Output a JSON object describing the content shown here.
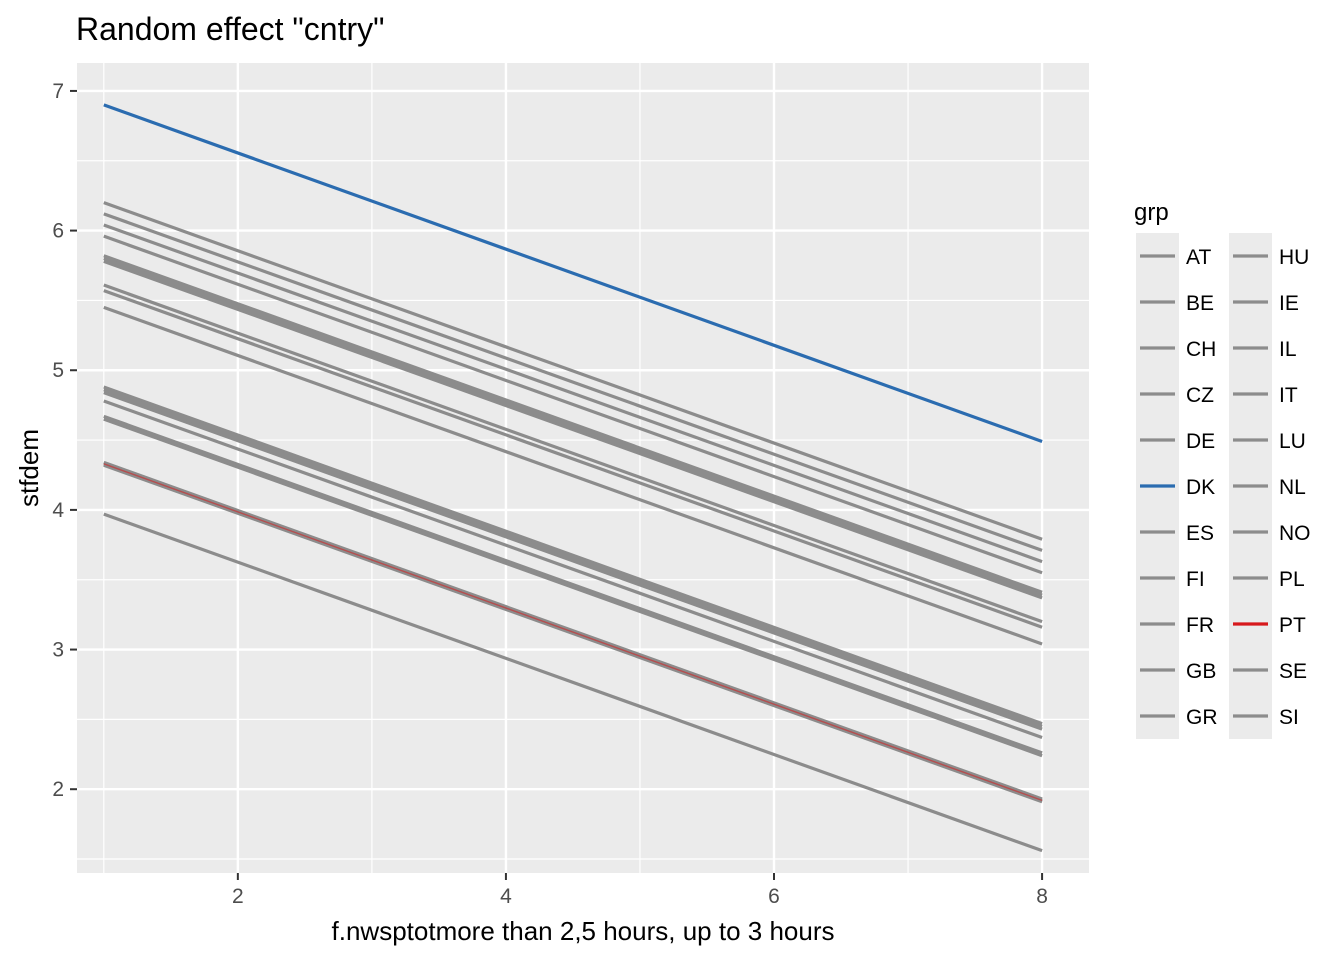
{
  "chart_data": {
    "type": "line",
    "title": "Random effect \"cntry\"",
    "xlabel": "f.nwsptotmore than 2,5 hours, up to 3 hours",
    "ylabel": "stfdem",
    "xlim": [
      0.8,
      8.35
    ],
    "ylim": [
      1.4,
      7.2
    ],
    "x_ticks": [
      2,
      4,
      6,
      8
    ],
    "y_ticks": [
      2,
      3,
      4,
      5,
      6,
      7
    ],
    "grid": true,
    "legend_title": "grp",
    "legend_position": "right",
    "colors": {
      "default": "#8c8c8c",
      "DK": "#2b6cb0",
      "PT": "#d7191c",
      "panel": "#ebebeb",
      "grid": "#ffffff"
    },
    "series": [
      {
        "name": "AT",
        "x": [
          1,
          8
        ],
        "y": [
          6.2,
          3.79
        ]
      },
      {
        "name": "BE",
        "x": [
          1,
          8
        ],
        "y": [
          6.12,
          3.71
        ]
      },
      {
        "name": "CH",
        "x": [
          1,
          8
        ],
        "y": [
          6.04,
          3.63
        ]
      },
      {
        "name": "CZ",
        "x": [
          1,
          8
        ],
        "y": [
          5.96,
          3.55
        ]
      },
      {
        "name": "DE",
        "x": [
          1,
          8
        ],
        "y": [
          5.82,
          3.41
        ]
      },
      {
        "name": "DK",
        "x": [
          1,
          8
        ],
        "y": [
          6.9,
          4.49
        ]
      },
      {
        "name": "ES",
        "x": [
          1,
          8
        ],
        "y": [
          5.78,
          3.37
        ]
      },
      {
        "name": "FI",
        "x": [
          1,
          8
        ],
        "y": [
          5.8,
          3.39
        ]
      },
      {
        "name": "FR",
        "x": [
          1,
          8
        ],
        "y": [
          5.61,
          3.2
        ]
      },
      {
        "name": "GB",
        "x": [
          1,
          8
        ],
        "y": [
          5.57,
          3.16
        ]
      },
      {
        "name": "GR",
        "x": [
          1,
          8
        ],
        "y": [
          5.45,
          3.04
        ]
      },
      {
        "name": "HU",
        "x": [
          1,
          8
        ],
        "y": [
          4.88,
          2.47
        ]
      },
      {
        "name": "IE",
        "x": [
          1,
          8
        ],
        "y": [
          4.86,
          2.45
        ]
      },
      {
        "name": "IL",
        "x": [
          1,
          8
        ],
        "y": [
          4.84,
          2.43
        ]
      },
      {
        "name": "IT",
        "x": [
          1,
          8
        ],
        "y": [
          4.78,
          2.37
        ]
      },
      {
        "name": "LU",
        "x": [
          1,
          8
        ],
        "y": [
          4.67,
          2.26
        ]
      },
      {
        "name": "NL",
        "x": [
          1,
          8
        ],
        "y": [
          4.65,
          2.24
        ]
      },
      {
        "name": "NO",
        "x": [
          1,
          8
        ],
        "y": [
          4.34,
          1.93
        ]
      },
      {
        "name": "PL",
        "x": [
          1,
          8
        ],
        "y": [
          4.33,
          1.92
        ]
      },
      {
        "name": "PT",
        "x": [
          1,
          8
        ],
        "y": [
          4.33,
          1.92
        ]
      },
      {
        "name": "SE",
        "x": [
          1,
          8
        ],
        "y": [
          4.32,
          1.91
        ]
      },
      {
        "name": "SI",
        "x": [
          1,
          8
        ],
        "y": [
          3.97,
          1.56
        ]
      }
    ]
  }
}
